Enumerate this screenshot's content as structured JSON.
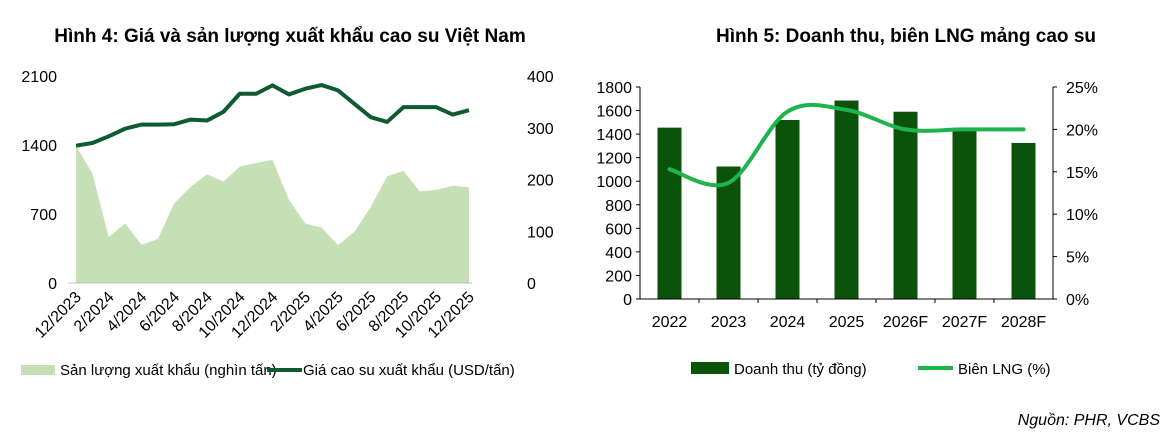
{
  "source": "Nguồn: PHR, VCBS",
  "colors": {
    "area": "#c5e0b4",
    "price_line": "#0e5a32",
    "bar": "#0b520b",
    "margin_line": "#1db34d",
    "axis": "#bfbfbf"
  },
  "chart_data": [
    {
      "type": "area+line",
      "title": "Hình 4: Giá và sản lượng xuất khẩu cao su Việt Nam",
      "x_tick_labels": [
        "12/2023",
        "2/2024",
        "4/2024",
        "6/2024",
        "8/2024",
        "10/2024",
        "12/2024",
        "2/2025",
        "4/2025",
        "6/2025",
        "8/2025",
        "10/2025",
        "12/2025"
      ],
      "left_axis": {
        "ticks": [
          "0",
          "700",
          "1400",
          "2100"
        ],
        "ylim": [
          0,
          2100
        ]
      },
      "right_axis": {
        "ticks": [
          "0",
          "100",
          "200",
          "300",
          "400"
        ],
        "ylim": [
          0,
          400
        ]
      },
      "series": [
        {
          "name": "Sản lượng xuất khẩu (nghìn tấn)",
          "type": "area",
          "axis": "right",
          "values": [
            265,
            212,
            89,
            115,
            74,
            85,
            154,
            186,
            210,
            196,
            225,
            232,
            238,
            161,
            115,
            107,
            73,
            99,
            147,
            206,
            217,
            177,
            180,
            188,
            185
          ]
        },
        {
          "name": "Giá cao su xuất khẩu (USD/tấn)",
          "type": "line",
          "axis": "left",
          "values": [
            1393,
            1420,
            1488,
            1566,
            1607,
            1607,
            1611,
            1658,
            1648,
            1736,
            1920,
            1920,
            2005,
            1913,
            1971,
            2008,
            1954,
            1818,
            1682,
            1634,
            1784,
            1784,
            1784,
            1709,
            1753
          ]
        }
      ],
      "legend": "bottom"
    },
    {
      "type": "bar+line",
      "title": "Hình 5: Doanh thu, biên LNG mảng cao su",
      "categories": [
        "2022",
        "2023",
        "2024",
        "2025",
        "2026F",
        "2027F",
        "2028F"
      ],
      "left_axis": {
        "ticks": [
          "0",
          "200",
          "400",
          "600",
          "800",
          "1000",
          "1200",
          "1400",
          "1600",
          "1800"
        ],
        "ylim": [
          0,
          1800
        ]
      },
      "right_axis": {
        "ticks": [
          "0%",
          "5%",
          "10%",
          "15%",
          "20%",
          "25%"
        ],
        "ylim": [
          0,
          25
        ]
      },
      "series": [
        {
          "name": "Doanh thu (tỷ đồng)",
          "type": "bar",
          "axis": "left",
          "values": [
            1455,
            1125,
            1520,
            1685,
            1590,
            1430,
            1325
          ]
        },
        {
          "name": "Biên LNG (%)",
          "type": "line",
          "axis": "right",
          "smooth": true,
          "values": [
            15.3,
            13.7,
            22.1,
            22.3,
            20.0,
            20.0,
            20.0
          ]
        }
      ],
      "legend": "bottom"
    }
  ]
}
